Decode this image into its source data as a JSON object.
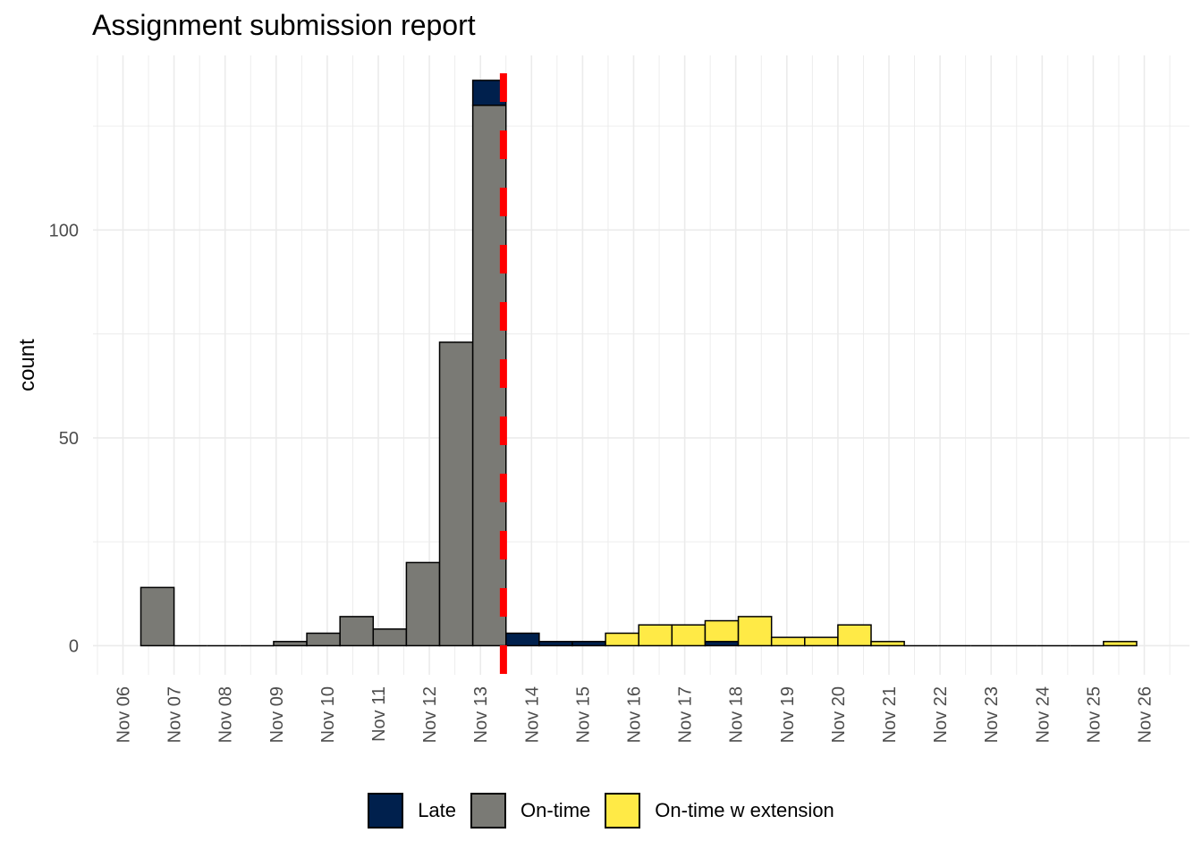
{
  "chart_data": {
    "type": "bar",
    "title": "Assignment submission report",
    "xlabel": "",
    "ylabel": "count",
    "ylim": [
      -7,
      142
    ],
    "y_ticks": [
      0,
      50,
      100
    ],
    "x_tick_labels": [
      "Nov 06",
      "Nov 07",
      "Nov 08",
      "Nov 09",
      "Nov 10",
      "Nov 11",
      "Nov 12",
      "Nov 13",
      "Nov 14",
      "Nov 15",
      "Nov 16",
      "Nov 17",
      "Nov 18",
      "Nov 19",
      "Nov 20",
      "Nov 21",
      "Nov 22",
      "Nov 23",
      "Nov 24",
      "Nov 25",
      "Nov 26"
    ],
    "x_tick_days": [
      6,
      7,
      8,
      9,
      10,
      11,
      12,
      13,
      14,
      15,
      16,
      17,
      18,
      19,
      20,
      21,
      22,
      23,
      24,
      25,
      26
    ],
    "bin_start_days": [
      6.35,
      7.0,
      7.65,
      8.3,
      8.95,
      9.6,
      10.25,
      10.9,
      11.55,
      12.2,
      12.85,
      13.5,
      14.15,
      14.8,
      15.45,
      16.1,
      16.75,
      17.4,
      18.05,
      18.7,
      19.35,
      20.0,
      20.65,
      21.3,
      21.95,
      22.6,
      23.25,
      23.9,
      24.55,
      25.2
    ],
    "bin_width_days": 0.65,
    "series": [
      {
        "name": "On-time",
        "color": "#7a7a75",
        "values": [
          14,
          0,
          0,
          0,
          1,
          3,
          7,
          4,
          20,
          73,
          130,
          0,
          0,
          0,
          0,
          0,
          0,
          0,
          0,
          0,
          0,
          0,
          0,
          0,
          0,
          0,
          0,
          0,
          0,
          0
        ]
      },
      {
        "name": "Late",
        "color": "#00204d",
        "values": [
          0,
          0,
          0,
          0,
          0,
          0,
          0,
          0,
          0,
          0,
          6,
          3,
          1,
          1,
          0,
          0,
          0,
          1,
          0,
          0,
          0,
          0,
          0,
          0,
          0,
          0,
          0,
          0,
          0,
          0
        ]
      },
      {
        "name": "On-time w extension",
        "color": "#ffea46",
        "values": [
          0,
          0,
          0,
          0,
          0,
          0,
          0,
          0,
          0,
          0,
          0,
          0,
          0,
          0,
          3,
          5,
          5,
          5,
          7,
          2,
          2,
          5,
          1,
          0,
          0,
          0,
          0,
          0,
          0,
          1
        ]
      }
    ],
    "reference_line": {
      "type": "vline",
      "x_day": 13.45,
      "color": "#ff0000",
      "style": "dashed"
    },
    "grid": true,
    "legend_position": "bottom"
  }
}
